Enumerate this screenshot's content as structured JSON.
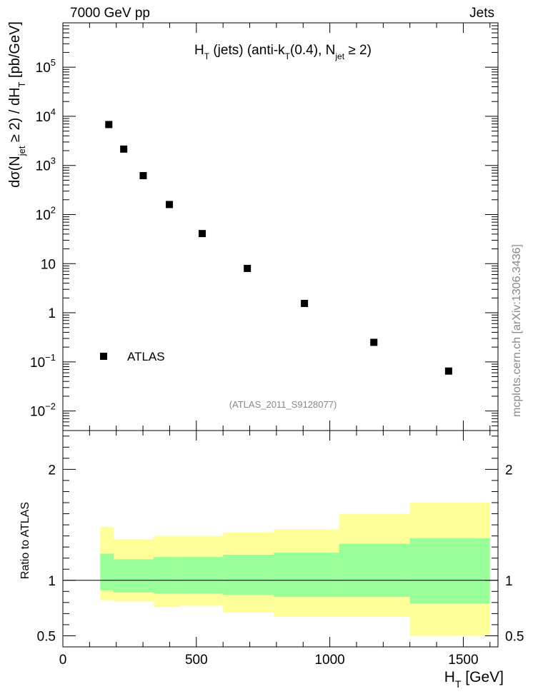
{
  "header": {
    "energy": "7000 GeV pp",
    "category": "Jets"
  },
  "side_label": "mcplots.cern.ch [arXiv:1306.3436]",
  "chart_data": [
    {
      "type": "scatter",
      "title": "H_T (jets) (anti-k_T(0.4), N_jet ≥ 2)",
      "title_parts": [
        "H",
        "T",
        " (jets) (anti-k",
        "T",
        "(0.4), N",
        "jet",
        " ≥ 2)"
      ],
      "ylabel_parts": [
        "dσ(N",
        "jet",
        " ≥ 2) / dH",
        "T",
        " [pb/GeV]"
      ],
      "xlabel_parts": [
        "H",
        "T",
        " [GeV]"
      ],
      "y_scale": "log",
      "xlim": [
        0,
        1630
      ],
      "ylim": [
        0.004,
        800000
      ],
      "y_ticks": [
        {
          "value": 0.01,
          "base": "10",
          "exp": "−2"
        },
        {
          "value": 0.1,
          "base": "10",
          "exp": "−1"
        },
        {
          "value": 1,
          "base": "1",
          "exp": ""
        },
        {
          "value": 10,
          "base": "10",
          "exp": ""
        },
        {
          "value": 100,
          "base": "10",
          "exp": "2"
        },
        {
          "value": 1000,
          "base": "10",
          "exp": "3"
        },
        {
          "value": 10000,
          "base": "10",
          "exp": "4"
        },
        {
          "value": 100000,
          "base": "10",
          "exp": "5"
        }
      ],
      "series": [
        {
          "name": "ATLAS",
          "marker": "square",
          "color": "#000000",
          "x": [
            172,
            228,
            301,
            399,
            522,
            691,
            905,
            1165,
            1445
          ],
          "y": [
            6800,
            2150,
            620,
            160,
            41,
            8.0,
            1.55,
            0.25,
            0.065
          ]
        }
      ],
      "legend": {
        "position": "bottom-left",
        "label": "ATLAS"
      },
      "annotation": "(ATLAS_2011_S9128077)"
    },
    {
      "type": "area",
      "ylabel": "Ratio to ATLAS",
      "xlabel": "",
      "xlim": [
        0,
        1630
      ],
      "ylim": [
        0.4,
        2.35
      ],
      "y_ticks": [
        0.5,
        1,
        2
      ],
      "x_ticks": [
        0,
        500,
        1000,
        1500
      ],
      "reference_line": 1,
      "bins": [
        {
          "xlo": 140,
          "xhi": 190,
          "inner": [
            0.91,
            1.24
          ],
          "outer": [
            0.82,
            1.48
          ]
        },
        {
          "xlo": 190,
          "xhi": 340,
          "inner": [
            0.89,
            1.19
          ],
          "outer": [
            0.81,
            1.37
          ]
        },
        {
          "xlo": 340,
          "xhi": 440,
          "inner": [
            0.88,
            1.21
          ],
          "outer": [
            0.76,
            1.4
          ]
        },
        {
          "xlo": 440,
          "xhi": 600,
          "inner": [
            0.88,
            1.21
          ],
          "outer": [
            0.77,
            1.4
          ]
        },
        {
          "xlo": 600,
          "xhi": 790,
          "inner": [
            0.87,
            1.23
          ],
          "outer": [
            0.71,
            1.43
          ]
        },
        {
          "xlo": 790,
          "xhi": 1035,
          "inner": [
            0.85,
            1.25
          ],
          "outer": [
            0.67,
            1.46
          ]
        },
        {
          "xlo": 1035,
          "xhi": 1300,
          "inner": [
            0.85,
            1.33
          ],
          "outer": [
            0.67,
            1.6
          ]
        },
        {
          "xlo": 1300,
          "xhi": 1600,
          "inner": [
            0.79,
            1.38
          ],
          "outer": [
            0.5,
            1.7
          ]
        }
      ],
      "band_colors": {
        "inner": "#99ff99",
        "outer": "#ffff99"
      }
    }
  ]
}
